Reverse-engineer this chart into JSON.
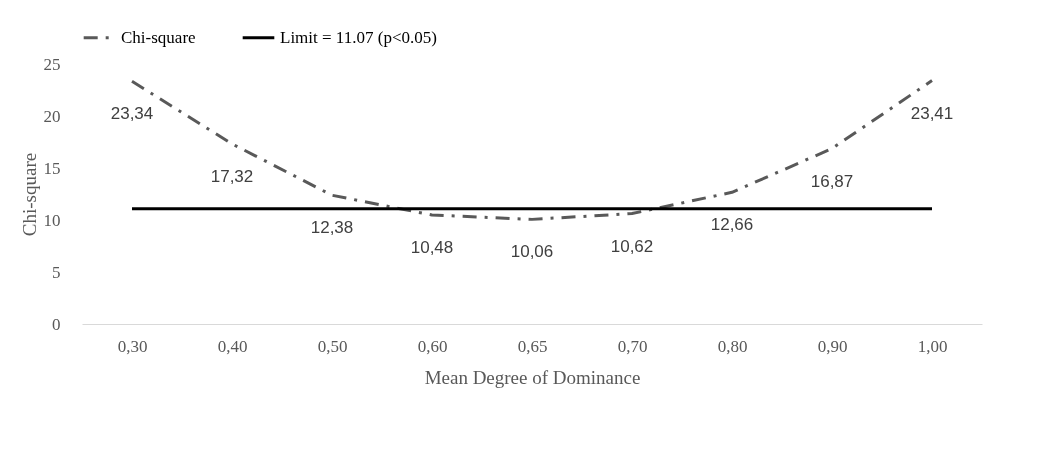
{
  "chart_data": {
    "type": "line",
    "xlabel": "Mean Degree of Dominance",
    "ylabel": "Chi-square",
    "categories": [
      "0,30",
      "0,40",
      "0,50",
      "0,60",
      "0,65",
      "0,70",
      "0,80",
      "0,90",
      "1,00"
    ],
    "series": [
      {
        "name": "Chi-square",
        "color": "#595959",
        "line_style": "dashed",
        "values": [
          23.34,
          17.32,
          12.38,
          10.48,
          10.06,
          10.62,
          12.66,
          16.87,
          23.41
        ],
        "value_labels": [
          "23,34",
          "17,32",
          "12,38",
          "10,48",
          "10,06",
          "10,62",
          "12,66",
          "16,87",
          "23,41"
        ]
      },
      {
        "name": "Limit = 11.07 (p<0.05)",
        "color": "#000000",
        "line_style": "solid",
        "values": [
          11.07,
          11.07,
          11.07,
          11.07,
          11.07,
          11.07,
          11.07,
          11.07,
          11.07
        ]
      }
    ],
    "ylim": [
      0,
      25
    ],
    "yticks": [
      0,
      5,
      10,
      15,
      20,
      25
    ],
    "grid": false,
    "legend": "top",
    "marker": "none"
  }
}
